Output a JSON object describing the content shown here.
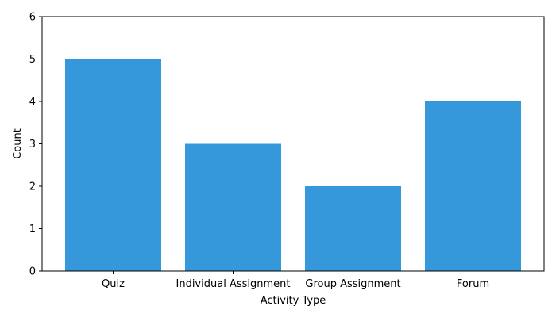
{
  "chart_data": {
    "type": "bar",
    "title": "",
    "xlabel": "Activity Type",
    "ylabel": "Count",
    "categories": [
      "Quiz",
      "Individual Assignment",
      "Group Assignment",
      "Forum"
    ],
    "values": [
      5,
      3,
      2,
      4
    ],
    "ylim": [
      0,
      6
    ],
    "yticks": [
      0,
      1,
      2,
      3,
      4,
      5,
      6
    ],
    "grid": false,
    "legend": "none",
    "bar_color": "#3498db"
  }
}
